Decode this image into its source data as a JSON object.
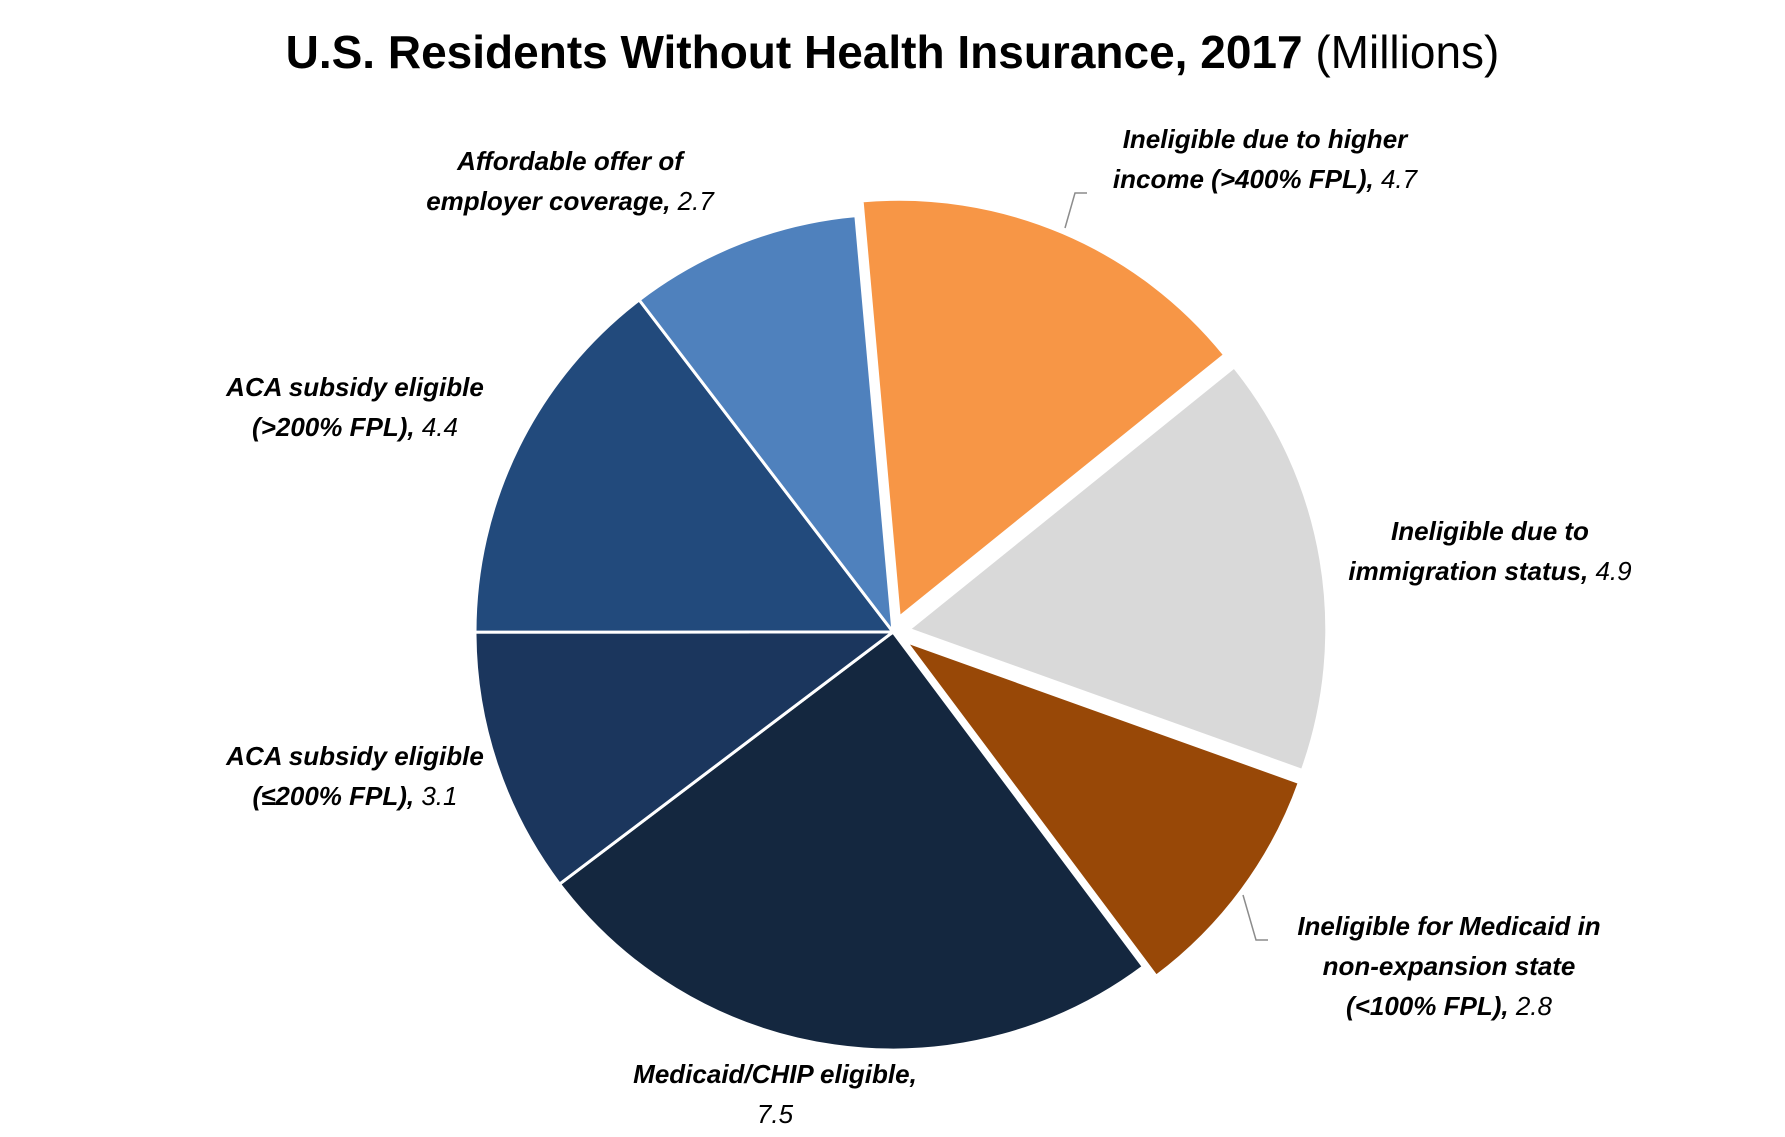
{
  "chart_data": {
    "type": "pie",
    "title": "U.S. Residents Without Health Insurance, 2017",
    "subtitle": "(Millions)",
    "slices": [
      {
        "label_lines": [
          "Ineligible due to higher",
          "income (>400% FPL),"
        ],
        "value": 4.7,
        "value_text": "4.7",
        "color": "#F79646",
        "exploded": true
      },
      {
        "label_lines": [
          "Ineligible due to",
          "immigration status,"
        ],
        "value": 4.9,
        "value_text": "4.9",
        "color": "#D9D9D9",
        "exploded": true
      },
      {
        "label_lines": [
          "Ineligible for Medicaid in",
          "non-expansion state",
          "(<100% FPL),"
        ],
        "value": 2.8,
        "value_text": "2.8",
        "color": "#984807",
        "exploded": true
      },
      {
        "label_lines": [
          "Medicaid/CHIP eligible,"
        ],
        "value": 7.5,
        "value_text": "7.5",
        "color": "#14273F",
        "exploded": false
      },
      {
        "label_lines": [
          "ACA subsidy eligible",
          "(≤200% FPL),"
        ],
        "value": 3.1,
        "value_text": "3.1",
        "color": "#1B365D",
        "exploded": false
      },
      {
        "label_lines": [
          "ACA subsidy eligible",
          "(>200% FPL),"
        ],
        "value": 4.4,
        "value_text": "4.4",
        "color": "#224A7C",
        "exploded": false
      },
      {
        "label_lines": [
          "Affordable offer of",
          "employer coverage,"
        ],
        "value": 2.7,
        "value_text": "2.7",
        "color": "#4F81BD",
        "exploded": false
      }
    ]
  }
}
